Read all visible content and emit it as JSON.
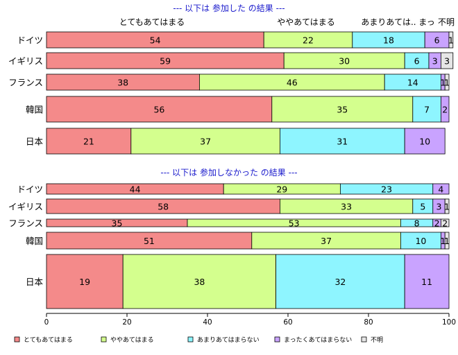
{
  "chart_data": {
    "type": "bar",
    "stacked": true,
    "orientation": "horizontal",
    "xlim": [
      0,
      100
    ],
    "xticks": [
      "0",
      "20",
      "40",
      "60",
      "80",
      "100"
    ],
    "legend_position": "bottom",
    "legend": [
      {
        "label": "とてもあてはまる",
        "color": "#f48a8a"
      },
      {
        "label": "ややあてはまる",
        "color": "#d4ff8e"
      },
      {
        "label": "あまりあてはまらない",
        "color": "#8ef5ff"
      },
      {
        "label": "まったくあてはまらない",
        "color": "#c9a3ff"
      },
      {
        "label": "不明",
        "color": "#e6e6e6"
      }
    ],
    "panels": [
      {
        "title": "--- 以下は 参加した の結果 ---",
        "column_headers": [
          "とてもあてはまる",
          "ややあてはまる",
          "あまりあては..",
          "まっ",
          "不明"
        ],
        "categories": [
          "ドイツ",
          "イギリス",
          "フランス",
          "韓国",
          "日本"
        ],
        "series": [
          {
            "name": "とてもあてはまる",
            "values": [
              54,
              59,
              38,
              56,
              21
            ]
          },
          {
            "name": "ややあてはまる",
            "values": [
              22,
              30,
              46,
              35,
              37
            ]
          },
          {
            "name": "あまりあてはまらない",
            "values": [
              18,
              6,
              14,
              7,
              31
            ]
          },
          {
            "name": "まったくあてはまらない",
            "values": [
              6,
              3,
              1,
              2,
              10
            ]
          },
          {
            "name": "不明",
            "values": [
              1,
              3,
              1,
              0,
              0
            ]
          }
        ]
      },
      {
        "title": "--- 以下は 参加しなかった の結果 ---",
        "categories": [
          "ドイツ",
          "イギリス",
          "フランス",
          "韓国",
          "日本"
        ],
        "series": [
          {
            "name": "とてもあてはまる",
            "values": [
              44,
              58,
              35,
              51,
              19
            ]
          },
          {
            "name": "ややあてはまる",
            "values": [
              29,
              33,
              53,
              37,
              38
            ]
          },
          {
            "name": "あまりあてはまらない",
            "values": [
              23,
              5,
              8,
              10,
              32
            ]
          },
          {
            "name": "まったくあてはまらない",
            "values": [
              4,
              3,
              2,
              1,
              11
            ]
          },
          {
            "name": "不明",
            "values": [
              0,
              1,
              2,
              1,
              0
            ]
          }
        ]
      }
    ]
  }
}
